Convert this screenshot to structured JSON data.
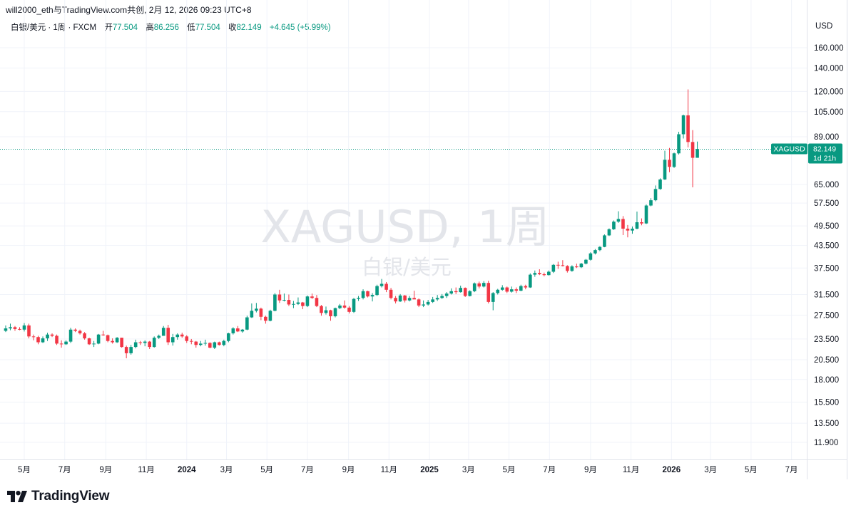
{
  "header": {
    "publisher": "will2000_eth与TradingView.com共创",
    "datetime": "2月 12, 2026 09:23 UTC+8"
  },
  "legend": {
    "title": "白银/美元 · 1周 · FXCM",
    "open_label": "开",
    "open_value": "77.504",
    "high_label": "高",
    "high_value": "86.256",
    "low_label": "低",
    "low_value": "77.504",
    "close_label": "收",
    "close_value": "82.149",
    "change": "+4.645 (+5.99%)"
  },
  "currency": "USD",
  "watermark": {
    "symbol": "XAGUSD, 1周",
    "name": "白银/美元"
  },
  "price_tag": {
    "symbol": "XAGUSD",
    "price": "82.149",
    "countdown": "1d 21h"
  },
  "brand": "TradingView",
  "colors": {
    "up": "#089981",
    "down": "#f23645",
    "grid": "#f0f3fa",
    "text": "#131722"
  },
  "chart_data": {
    "type": "candlestick",
    "scale": "log",
    "y_ticks": [
      11.9,
      13.5,
      15.5,
      18.0,
      20.5,
      23.5,
      27.5,
      31.5,
      37.5,
      43.5,
      49.5,
      57.5,
      65.0,
      89.0,
      105.0,
      120.0,
      140.0,
      160.0
    ],
    "y_tick_labels": [
      "11.900",
      "13.500",
      "15.500",
      "18.000",
      "20.500",
      "23.500",
      "27.500",
      "31.500",
      "37.500",
      "43.500",
      "49.500",
      "57.500",
      "65.000",
      "89.000",
      "105.000",
      "120.000",
      "140.000",
      "160.000"
    ],
    "x_ticks": [
      {
        "label": "5月",
        "date": "2023-05-01",
        "bold": false
      },
      {
        "label": "7月",
        "date": "2023-07-01",
        "bold": false
      },
      {
        "label": "9月",
        "date": "2023-09-01",
        "bold": false
      },
      {
        "label": "11月",
        "date": "2023-11-01",
        "bold": false
      },
      {
        "label": "2024",
        "date": "2024-01-01",
        "bold": true
      },
      {
        "label": "3月",
        "date": "2024-03-01",
        "bold": false
      },
      {
        "label": "5月",
        "date": "2024-05-01",
        "bold": false
      },
      {
        "label": "7月",
        "date": "2024-07-01",
        "bold": false
      },
      {
        "label": "9月",
        "date": "2024-09-01",
        "bold": false
      },
      {
        "label": "11月",
        "date": "2024-11-01",
        "bold": false
      },
      {
        "label": "2025",
        "date": "2025-01-01",
        "bold": true
      },
      {
        "label": "3月",
        "date": "2025-03-01",
        "bold": false
      },
      {
        "label": "5月",
        "date": "2025-05-01",
        "bold": false
      },
      {
        "label": "7月",
        "date": "2025-07-01",
        "bold": false
      },
      {
        "label": "9月",
        "date": "2025-09-01",
        "bold": false
      },
      {
        "label": "11月",
        "date": "2025-11-01",
        "bold": false
      },
      {
        "label": "2026",
        "date": "2026-01-01",
        "bold": true
      },
      {
        "label": "3月",
        "date": "2026-03-01",
        "bold": false
      },
      {
        "label": "5月",
        "date": "2026-05-01",
        "bold": false
      },
      {
        "label": "7月",
        "date": "2026-07-01",
        "bold": false
      }
    ],
    "last_price": 82.149,
    "candle_interval": "1W",
    "candles": [
      [
        "2023-04-03",
        24.8,
        25.7,
        24.6,
        25.2
      ],
      [
        "2023-04-10",
        25.2,
        26.0,
        24.9,
        25.4
      ],
      [
        "2023-04-17",
        25.4,
        25.6,
        24.8,
        25.1
      ],
      [
        "2023-04-24",
        25.1,
        25.4,
        24.9,
        25.0
      ],
      [
        "2023-05-01",
        25.0,
        26.1,
        24.7,
        25.7
      ],
      [
        "2023-05-08",
        25.7,
        26.0,
        23.6,
        23.9
      ],
      [
        "2023-05-15",
        23.9,
        24.2,
        23.3,
        23.8
      ],
      [
        "2023-05-22",
        23.8,
        24.0,
        22.7,
        23.0
      ],
      [
        "2023-05-29",
        23.0,
        23.9,
        22.9,
        23.6
      ],
      [
        "2023-06-05",
        23.6,
        24.5,
        23.2,
        24.2
      ],
      [
        "2023-06-12",
        24.2,
        24.4,
        23.8,
        24.0
      ],
      [
        "2023-06-19",
        24.0,
        24.2,
        22.6,
        22.8
      ],
      [
        "2023-06-26",
        22.8,
        23.3,
        22.2,
        22.7
      ],
      [
        "2023-07-03",
        22.7,
        23.3,
        22.6,
        23.1
      ],
      [
        "2023-07-10",
        23.1,
        25.3,
        22.9,
        25.0
      ],
      [
        "2023-07-17",
        25.0,
        25.2,
        24.6,
        24.8
      ],
      [
        "2023-07-24",
        24.8,
        25.0,
        24.2,
        24.4
      ],
      [
        "2023-07-31",
        24.4,
        24.6,
        23.4,
        23.6
      ],
      [
        "2023-08-07",
        23.6,
        23.7,
        22.6,
        22.7
      ],
      [
        "2023-08-14",
        22.7,
        23.2,
        22.3,
        22.8
      ],
      [
        "2023-08-21",
        22.8,
        24.3,
        22.7,
        24.2
      ],
      [
        "2023-08-28",
        24.2,
        24.8,
        24.0,
        24.1
      ],
      [
        "2023-09-04",
        24.1,
        24.2,
        23.0,
        23.2
      ],
      [
        "2023-09-11",
        23.2,
        23.6,
        22.8,
        23.0
      ],
      [
        "2023-09-18",
        23.0,
        23.8,
        22.9,
        23.7
      ],
      [
        "2023-09-25",
        23.7,
        23.7,
        22.2,
        22.3
      ],
      [
        "2023-10-02",
        22.3,
        22.5,
        20.7,
        21.4
      ],
      [
        "2023-10-09",
        21.4,
        22.6,
        21.2,
        22.3
      ],
      [
        "2023-10-16",
        22.3,
        23.4,
        22.1,
        23.0
      ],
      [
        "2023-10-23",
        23.0,
        23.2,
        22.6,
        22.9
      ],
      [
        "2023-10-30",
        22.9,
        23.3,
        22.4,
        23.1
      ],
      [
        "2023-11-06",
        23.1,
        23.2,
        22.0,
        22.3
      ],
      [
        "2023-11-13",
        22.3,
        23.9,
        22.2,
        23.7
      ],
      [
        "2023-11-20",
        23.7,
        24.2,
        23.5,
        24.0
      ],
      [
        "2023-11-27",
        24.0,
        25.6,
        24.0,
        25.3
      ],
      [
        "2023-12-04",
        25.3,
        25.8,
        22.6,
        23.0
      ],
      [
        "2023-12-11",
        23.0,
        24.3,
        22.5,
        23.8
      ],
      [
        "2023-12-18",
        23.8,
        24.4,
        23.4,
        24.2
      ],
      [
        "2023-12-25",
        24.2,
        24.5,
        23.7,
        23.9
      ],
      [
        "2024-01-01",
        23.9,
        24.1,
        22.9,
        23.2
      ],
      [
        "2024-01-08",
        23.2,
        23.5,
        22.7,
        23.1
      ],
      [
        "2024-01-15",
        23.1,
        23.2,
        22.2,
        22.6
      ],
      [
        "2024-01-22",
        22.6,
        23.2,
        22.4,
        22.8
      ],
      [
        "2024-01-29",
        22.8,
        23.4,
        22.5,
        22.9
      ],
      [
        "2024-02-05",
        22.9,
        23.0,
        22.1,
        22.2
      ],
      [
        "2024-02-12",
        22.2,
        23.1,
        22.0,
        23.0
      ],
      [
        "2024-02-19",
        23.0,
        23.1,
        22.5,
        22.6
      ],
      [
        "2024-02-26",
        22.6,
        23.4,
        22.4,
        23.2
      ],
      [
        "2024-03-04",
        23.2,
        24.5,
        23.0,
        24.4
      ],
      [
        "2024-03-11",
        24.4,
        25.4,
        24.2,
        25.2
      ],
      [
        "2024-03-18",
        25.2,
        25.6,
        24.6,
        24.7
      ],
      [
        "2024-03-25",
        24.7,
        25.1,
        24.5,
        25.0
      ],
      [
        "2024-04-01",
        25.0,
        27.4,
        24.9,
        27.1
      ],
      [
        "2024-04-08",
        27.1,
        29.7,
        27.0,
        28.3
      ],
      [
        "2024-04-15",
        28.3,
        29.8,
        28.0,
        28.7
      ],
      [
        "2024-04-22",
        28.7,
        28.9,
        26.6,
        27.2
      ],
      [
        "2024-04-29",
        27.2,
        27.4,
        26.0,
        26.5
      ],
      [
        "2024-05-06",
        26.5,
        28.5,
        26.4,
        28.3
      ],
      [
        "2024-05-13",
        28.3,
        31.8,
        28.2,
        31.5
      ],
      [
        "2024-05-20",
        31.5,
        32.5,
        29.8,
        30.3
      ],
      [
        "2024-05-27",
        30.3,
        31.7,
        30.1,
        30.4
      ],
      [
        "2024-06-03",
        30.4,
        31.5,
        29.2,
        29.5
      ],
      [
        "2024-06-10",
        29.5,
        30.2,
        28.8,
        29.6
      ],
      [
        "2024-06-17",
        29.6,
        30.9,
        29.4,
        29.9
      ],
      [
        "2024-06-24",
        29.9,
        30.0,
        28.6,
        29.2
      ],
      [
        "2024-07-01",
        29.2,
        31.3,
        29.0,
        31.1
      ],
      [
        "2024-07-08",
        31.1,
        31.7,
        30.6,
        30.8
      ],
      [
        "2024-07-15",
        30.8,
        31.4,
        29.0,
        29.2
      ],
      [
        "2024-07-22",
        29.2,
        29.4,
        27.4,
        27.9
      ],
      [
        "2024-07-29",
        27.9,
        29.1,
        27.6,
        28.4
      ],
      [
        "2024-08-05",
        28.4,
        28.5,
        26.5,
        27.3
      ],
      [
        "2024-08-12",
        27.3,
        28.9,
        27.1,
        28.8
      ],
      [
        "2024-08-19",
        28.8,
        29.6,
        28.6,
        29.3
      ],
      [
        "2024-08-26",
        29.3,
        30.3,
        28.7,
        28.9
      ],
      [
        "2024-09-02",
        28.9,
        29.2,
        27.8,
        28.1
      ],
      [
        "2024-09-09",
        28.1,
        30.8,
        27.9,
        30.6
      ],
      [
        "2024-09-16",
        30.6,
        31.2,
        30.2,
        30.8
      ],
      [
        "2024-09-23",
        30.8,
        32.6,
        30.5,
        32.2
      ],
      [
        "2024-09-30",
        32.2,
        32.3,
        30.9,
        31.1
      ],
      [
        "2024-10-07",
        31.1,
        31.8,
        30.1,
        31.4
      ],
      [
        "2024-10-14",
        31.4,
        33.6,
        31.2,
        33.3
      ],
      [
        "2024-10-21",
        33.3,
        34.9,
        33.0,
        33.8
      ],
      [
        "2024-10-28",
        33.8,
        34.2,
        32.0,
        32.5
      ],
      [
        "2024-11-04",
        32.5,
        32.9,
        30.5,
        30.8
      ],
      [
        "2024-11-11",
        30.8,
        31.2,
        29.7,
        30.1
      ],
      [
        "2024-11-18",
        30.1,
        31.6,
        30.0,
        31.3
      ],
      [
        "2024-11-25",
        31.3,
        31.4,
        29.9,
        30.3
      ],
      [
        "2024-12-02",
        30.3,
        31.2,
        30.1,
        30.8
      ],
      [
        "2024-12-09",
        30.8,
        32.3,
        30.6,
        30.5
      ],
      [
        "2024-12-16",
        30.5,
        30.7,
        29.0,
        29.3
      ],
      [
        "2024-12-23",
        29.3,
        30.3,
        29.0,
        29.5
      ],
      [
        "2024-12-30",
        29.5,
        30.4,
        29.3,
        30.0
      ],
      [
        "2025-01-06",
        30.0,
        31.0,
        29.8,
        30.5
      ],
      [
        "2025-01-13",
        30.5,
        31.4,
        30.2,
        30.8
      ],
      [
        "2025-01-20",
        30.8,
        31.6,
        30.6,
        31.2
      ],
      [
        "2025-01-27",
        31.2,
        32.0,
        30.8,
        31.7
      ],
      [
        "2025-02-03",
        31.7,
        32.8,
        31.5,
        32.2
      ],
      [
        "2025-02-10",
        32.2,
        33.0,
        31.6,
        32.0
      ],
      [
        "2025-02-17",
        32.0,
        33.4,
        31.9,
        32.9
      ],
      [
        "2025-02-24",
        32.9,
        33.0,
        31.0,
        31.2
      ],
      [
        "2025-03-03",
        31.2,
        32.4,
        31.1,
        32.2
      ],
      [
        "2025-03-10",
        32.2,
        34.1,
        32.0,
        33.9
      ],
      [
        "2025-03-17",
        33.9,
        34.3,
        32.8,
        33.2
      ],
      [
        "2025-03-24",
        33.2,
        34.4,
        33.0,
        34.0
      ],
      [
        "2025-03-31",
        34.0,
        34.5,
        29.7,
        30.0
      ],
      [
        "2025-04-07",
        30.0,
        32.0,
        28.4,
        31.8
      ],
      [
        "2025-04-14",
        31.8,
        32.7,
        31.5,
        32.5
      ],
      [
        "2025-04-21",
        32.5,
        33.5,
        32.3,
        33.0
      ],
      [
        "2025-04-28",
        33.0,
        33.2,
        31.8,
        32.1
      ],
      [
        "2025-05-05",
        32.1,
        33.2,
        31.9,
        32.6
      ],
      [
        "2025-05-12",
        32.6,
        33.0,
        31.8,
        32.3
      ],
      [
        "2025-05-19",
        32.3,
        33.6,
        32.2,
        33.3
      ],
      [
        "2025-05-26",
        33.3,
        33.6,
        32.6,
        33.0
      ],
      [
        "2025-06-02",
        33.0,
        36.2,
        32.9,
        35.9
      ],
      [
        "2025-06-09",
        35.9,
        36.9,
        35.4,
        36.3
      ],
      [
        "2025-06-16",
        36.3,
        37.2,
        35.8,
        36.0
      ],
      [
        "2025-06-23",
        36.0,
        36.4,
        35.5,
        35.8
      ],
      [
        "2025-06-30",
        35.8,
        36.9,
        35.7,
        36.6
      ],
      [
        "2025-07-07",
        36.6,
        38.5,
        36.3,
        38.3
      ],
      [
        "2025-07-14",
        38.3,
        39.1,
        37.3,
        38.2
      ],
      [
        "2025-07-21",
        38.2,
        39.5,
        37.9,
        38.0
      ],
      [
        "2025-07-28",
        38.0,
        38.2,
        36.4,
        36.8
      ],
      [
        "2025-08-04",
        36.8,
        38.2,
        36.6,
        37.9
      ],
      [
        "2025-08-11",
        37.9,
        38.6,
        37.5,
        37.7
      ],
      [
        "2025-08-18",
        37.7,
        38.8,
        37.5,
        38.6
      ],
      [
        "2025-08-25",
        38.6,
        39.8,
        38.4,
        39.6
      ],
      [
        "2025-09-01",
        39.6,
        41.6,
        39.4,
        41.3
      ],
      [
        "2025-09-08",
        41.3,
        42.5,
        41.0,
        42.2
      ],
      [
        "2025-09-15",
        42.2,
        43.3,
        41.9,
        43.1
      ],
      [
        "2025-09-22",
        43.1,
        46.8,
        43.0,
        46.5
      ],
      [
        "2025-09-29",
        46.5,
        48.7,
        46.3,
        48.4
      ],
      [
        "2025-10-06",
        48.4,
        51.3,
        48.2,
        50.9
      ],
      [
        "2025-10-13",
        50.9,
        54.5,
        50.5,
        51.8
      ],
      [
        "2025-10-20",
        51.8,
        52.8,
        46.6,
        48.6
      ],
      [
        "2025-10-27",
        48.6,
        49.8,
        45.9,
        48.0
      ],
      [
        "2025-11-03",
        48.0,
        49.3,
        47.0,
        48.6
      ],
      [
        "2025-11-10",
        48.6,
        54.4,
        48.4,
        50.7
      ],
      [
        "2025-11-17",
        50.7,
        52.0,
        49.7,
        50.3
      ],
      [
        "2025-11-24",
        50.3,
        57.0,
        50.1,
        56.6
      ],
      [
        "2025-12-01",
        56.6,
        59.4,
        56.3,
        58.6
      ],
      [
        "2025-12-08",
        58.6,
        64.6,
        58.2,
        63.1
      ],
      [
        "2025-12-15",
        63.1,
        67.7,
        62.8,
        67.2
      ],
      [
        "2025-12-22",
        67.2,
        81.2,
        67.0,
        76.5
      ],
      [
        "2025-12-29",
        76.5,
        82.7,
        70.5,
        73.0
      ],
      [
        "2026-01-05",
        73.0,
        80.2,
        72.5,
        79.8
      ],
      [
        "2026-01-12",
        79.8,
        92.0,
        79.2,
        90.5
      ],
      [
        "2026-01-19",
        90.5,
        103.0,
        88.0,
        102.5
      ],
      [
        "2026-01-26",
        102.5,
        121.6,
        83.0,
        86.0
      ],
      [
        "2026-02-02",
        86.0,
        93.0,
        63.8,
        77.5
      ],
      [
        "2026-02-09",
        77.504,
        86.256,
        77.504,
        82.149
      ]
    ]
  }
}
